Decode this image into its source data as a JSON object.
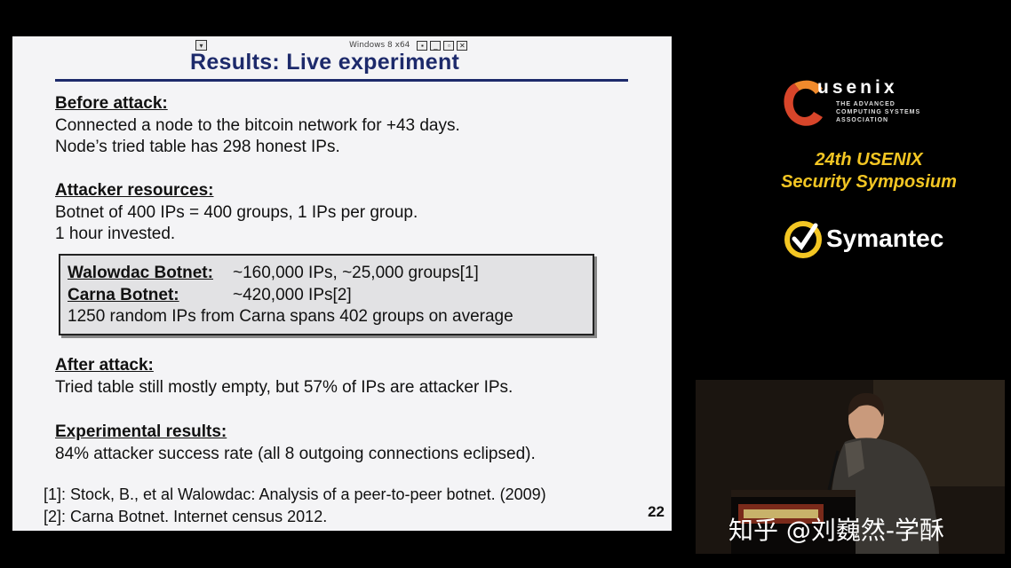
{
  "vm_bar": {
    "pin_icon": "pin-icon",
    "label": "Windows 8 x64",
    "buttons": [
      "monitor-icon",
      "minimize-icon",
      "restore-icon",
      "close-icon"
    ]
  },
  "slide": {
    "title": "Results: Live experiment",
    "before": {
      "heading": "Before attack:",
      "lines": [
        "Connected a node to the bitcoin network for +43 days.",
        "Node’s tried table has 298 honest IPs."
      ]
    },
    "attacker": {
      "heading": "Attacker resources:",
      "lines": [
        "Botnet of 400 IPs = 400 groups, 1 IPs per group.",
        "1 hour invested."
      ]
    },
    "box": {
      "walowdac_label": "Walowdac Botnet:",
      "walowdac_value": "~160,000 IPs, ~25,000 groups[1]",
      "carna_label": "Carna Botnet:",
      "carna_value": "~420,000 IPs[2]",
      "note": "1250 random IPs from Carna spans 402 groups on average"
    },
    "after": {
      "heading": "After attack:",
      "lines": [
        "Tried table still mostly empty, but 57% of IPs are attacker IPs."
      ]
    },
    "experimental": {
      "heading": "Experimental results:",
      "lines": [
        "84% attacker success rate (all 8 outgoing connections eclipsed)."
      ]
    },
    "refs": [
      "[1]: Stock, B., et al Walowdac: Analysis of a peer-to-peer botnet. (2009)",
      "[2]: Carna Botnet. Internet census 2012."
    ],
    "page_number": "22"
  },
  "sidebar": {
    "usenix_word": "usenix",
    "usenix_sub": [
      "THE ADVANCED",
      "COMPUTING SYSTEMS",
      "ASSOCIATION"
    ],
    "symposium_line1": "24th USENIX",
    "symposium_line2": "Security Symposium",
    "sponsor": "Symantec",
    "symposium_color": "#f3c623"
  },
  "watermark": "知乎 @刘巍然-学酥"
}
